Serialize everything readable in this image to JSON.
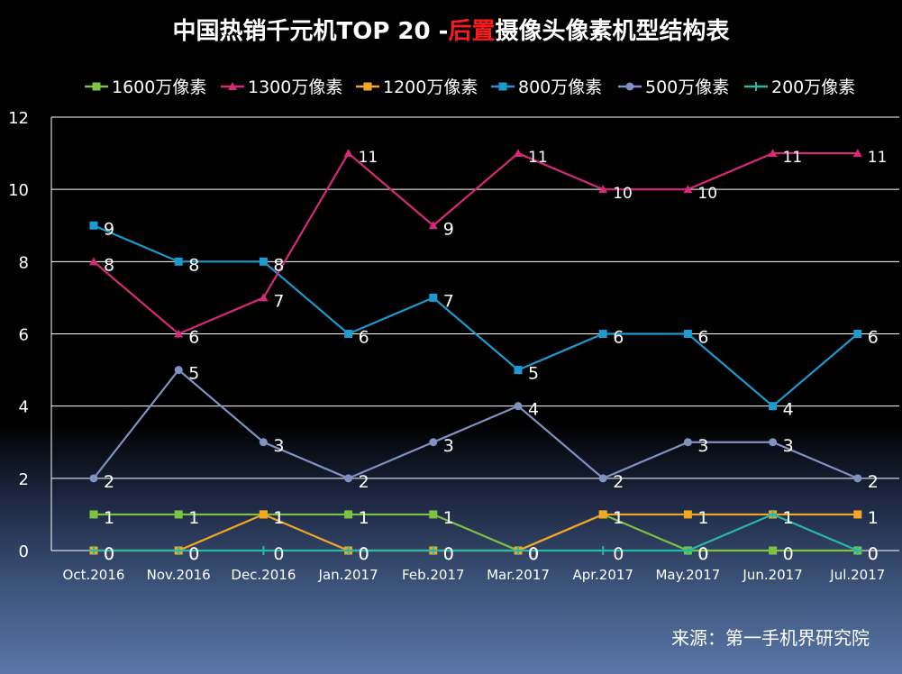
{
  "title": {
    "part1": "中国热销千元机TOP 20 -",
    "part2": "后置",
    "part3": "摄像头像素机型结构表"
  },
  "source": "来源：第一手机界研究院",
  "chart_data": {
    "type": "line",
    "title": "中国热销千元机TOP 20 -后置摄像头像素机型结构表",
    "xlabel": "",
    "ylabel": "",
    "ylim": [
      0,
      12
    ],
    "y_ticks": [
      "0",
      "2",
      "4",
      "6",
      "8",
      "10",
      "12"
    ],
    "y_tick_values": [
      0,
      2,
      4,
      6,
      8,
      10,
      12
    ],
    "grid": true,
    "legend_position": "top",
    "categories": [
      "Oct.2016",
      "Nov.2016",
      "Dec.2016",
      "Jan.2017",
      "Feb.2017",
      "Mar.2017",
      "Apr.2017",
      "May.2017",
      "Jun.2017",
      "Jul.2017"
    ],
    "series": [
      {
        "name": "1600万像素",
        "color": "#7dc242",
        "marker": "square",
        "values": [
          1,
          1,
          1,
          1,
          1,
          0,
          1,
          0,
          0,
          0
        ],
        "labels": [
          "1",
          "1",
          "1",
          "1",
          "1",
          "0",
          "1",
          "0",
          "0",
          "0"
        ]
      },
      {
        "name": "1300万像素",
        "color": "#d62a78",
        "marker": "triangle",
        "values": [
          8,
          6,
          7,
          11,
          9,
          11,
          10,
          10,
          11,
          11
        ],
        "labels": [
          "8",
          "6",
          "7",
          "11",
          "9",
          "11",
          "10",
          "10",
          "11",
          "11"
        ]
      },
      {
        "name": "1200万像素",
        "color": "#f5a623",
        "marker": "square",
        "values": [
          0,
          0,
          1,
          0,
          0,
          0,
          1,
          1,
          1,
          1
        ],
        "labels": [
          "0",
          "0",
          "1",
          "0",
          "0",
          "0",
          "1",
          "1",
          "1",
          "1"
        ]
      },
      {
        "name": "800万像素",
        "color": "#1b9bd1",
        "marker": "square",
        "values": [
          9,
          8,
          8,
          6,
          7,
          5,
          6,
          6,
          4,
          6
        ],
        "labels": [
          "9",
          "8",
          "8",
          "6",
          "7",
          "5",
          "6",
          "6",
          "4",
          "6"
        ]
      },
      {
        "name": "500万像素",
        "color": "#7f92c2",
        "marker": "circle",
        "values": [
          2,
          5,
          3,
          2,
          3,
          4,
          2,
          3,
          3,
          2
        ],
        "labels": [
          "2",
          "5",
          "3",
          "2",
          "3",
          "4",
          "2",
          "3",
          "3",
          "2"
        ]
      },
      {
        "name": "200万像素",
        "color": "#28b9a6",
        "marker": "plus",
        "values": [
          0,
          0,
          0,
          0,
          0,
          0,
          0,
          0,
          1,
          0
        ],
        "labels": [
          "0",
          "0",
          "0",
          "0",
          "0",
          "0",
          "0",
          "0",
          "1",
          "0"
        ]
      }
    ]
  }
}
